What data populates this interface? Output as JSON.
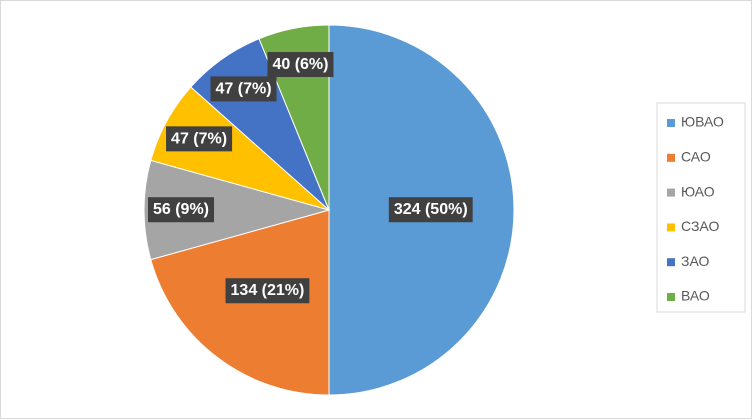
{
  "chart_data": {
    "type": "pie",
    "categories": [
      "ЮВАО",
      "САО",
      "ЮАО",
      "СЗАО",
      "ЗАО",
      "ВАО"
    ],
    "values": [
      324,
      134,
      56,
      47,
      47,
      40
    ],
    "value_labels": [
      "324 (50%)",
      "134 (21%)",
      "56 (9%)",
      "47 (7%)",
      "47 (7%)",
      "40 (6%)"
    ],
    "colors": [
      "#5b9bd5",
      "#ed7d31",
      "#a5a5a5",
      "#ffc000",
      "#4472c4",
      "#70ad47"
    ],
    "legend": "right"
  }
}
